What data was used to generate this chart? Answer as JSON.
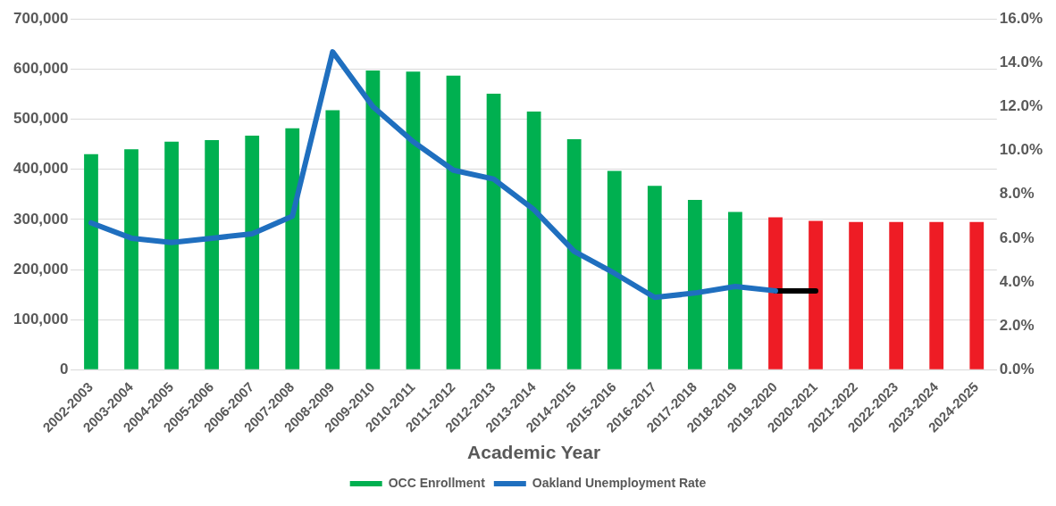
{
  "chart_data": {
    "type": "bar",
    "xlabel": "Academic Year",
    "categories": [
      "2002-2003",
      "2003-2004",
      "2004-2005",
      "2005-2006",
      "2006-2007",
      "2007-2008",
      "2008-2009",
      "2009-2010",
      "2010-2011",
      "2011-2012",
      "2012-2013",
      "2013-2014",
      "2014-2015",
      "2015-2016",
      "2016-2017",
      "2017-2018",
      "2018-2019",
      "2019-2020",
      "2020-2021",
      "2021-2022",
      "2022-2023",
      "2023-2024",
      "2024-2025"
    ],
    "series": [
      {
        "name": "OCC Enrollment",
        "color": "#00b050",
        "colors": [
          "#00b050",
          "#00b050",
          "#00b050",
          "#00b050",
          "#00b050",
          "#00b050",
          "#00b050",
          "#00b050",
          "#00b050",
          "#00b050",
          "#00b050",
          "#00b050",
          "#00b050",
          "#00b050",
          "#00b050",
          "#00b050",
          "#00b050",
          "#ee1c25",
          "#ee1c25",
          "#ee1c25",
          "#ee1c25",
          "#ee1c25",
          "#ee1c25"
        ],
        "values": [
          430000,
          440000,
          455000,
          458000,
          467000,
          482000,
          518000,
          597000,
          595000,
          587000,
          551000,
          515000,
          460000,
          397000,
          367000,
          339000,
          315000,
          304000,
          297000,
          295000,
          295000,
          295000,
          295000
        ]
      },
      {
        "name": "Oakland Unemployment Rate",
        "type": "line",
        "axis": "y2",
        "color": "#1f6fbf",
        "values": [
          6.7,
          6.0,
          5.8,
          6.0,
          6.2,
          7.0,
          14.5,
          12.0,
          10.4,
          9.1,
          8.7,
          7.3,
          5.4,
          4.4,
          3.3,
          3.5,
          3.8,
          3.6,
          null,
          null,
          null,
          null,
          null
        ]
      },
      {
        "type": "line",
        "axis": "y2",
        "color": "#000000",
        "values": [
          null,
          null,
          null,
          null,
          null,
          null,
          null,
          null,
          null,
          null,
          null,
          null,
          null,
          null,
          null,
          null,
          null,
          3.6,
          3.6,
          null,
          null,
          null,
          null
        ]
      }
    ],
    "ylim": [
      0,
      700000
    ],
    "yticks": [
      {
        "value": 0,
        "label": "0"
      },
      {
        "value": 100000,
        "label": "100,000"
      },
      {
        "value": 200000,
        "label": "200,000"
      },
      {
        "value": 300000,
        "label": "300,000"
      },
      {
        "value": 400000,
        "label": "400,000"
      },
      {
        "value": 500000,
        "label": "500,000"
      },
      {
        "value": 600000,
        "label": "600,000"
      },
      {
        "value": 700000,
        "label": "700,000"
      }
    ],
    "y2lim": [
      0,
      16
    ],
    "y2ticks": [
      {
        "value": 0,
        "label": "0.0%"
      },
      {
        "value": 2,
        "label": "2.0%"
      },
      {
        "value": 4,
        "label": "4.0%"
      },
      {
        "value": 6,
        "label": "6.0%"
      },
      {
        "value": 8,
        "label": "8.0%"
      },
      {
        "value": 10,
        "label": "10.0%"
      },
      {
        "value": 12,
        "label": "12.0%"
      },
      {
        "value": 14,
        "label": "14.0%"
      },
      {
        "value": 16,
        "label": "16.0%"
      }
    ],
    "grid": "y",
    "legend": "bottom",
    "marker": "none"
  }
}
